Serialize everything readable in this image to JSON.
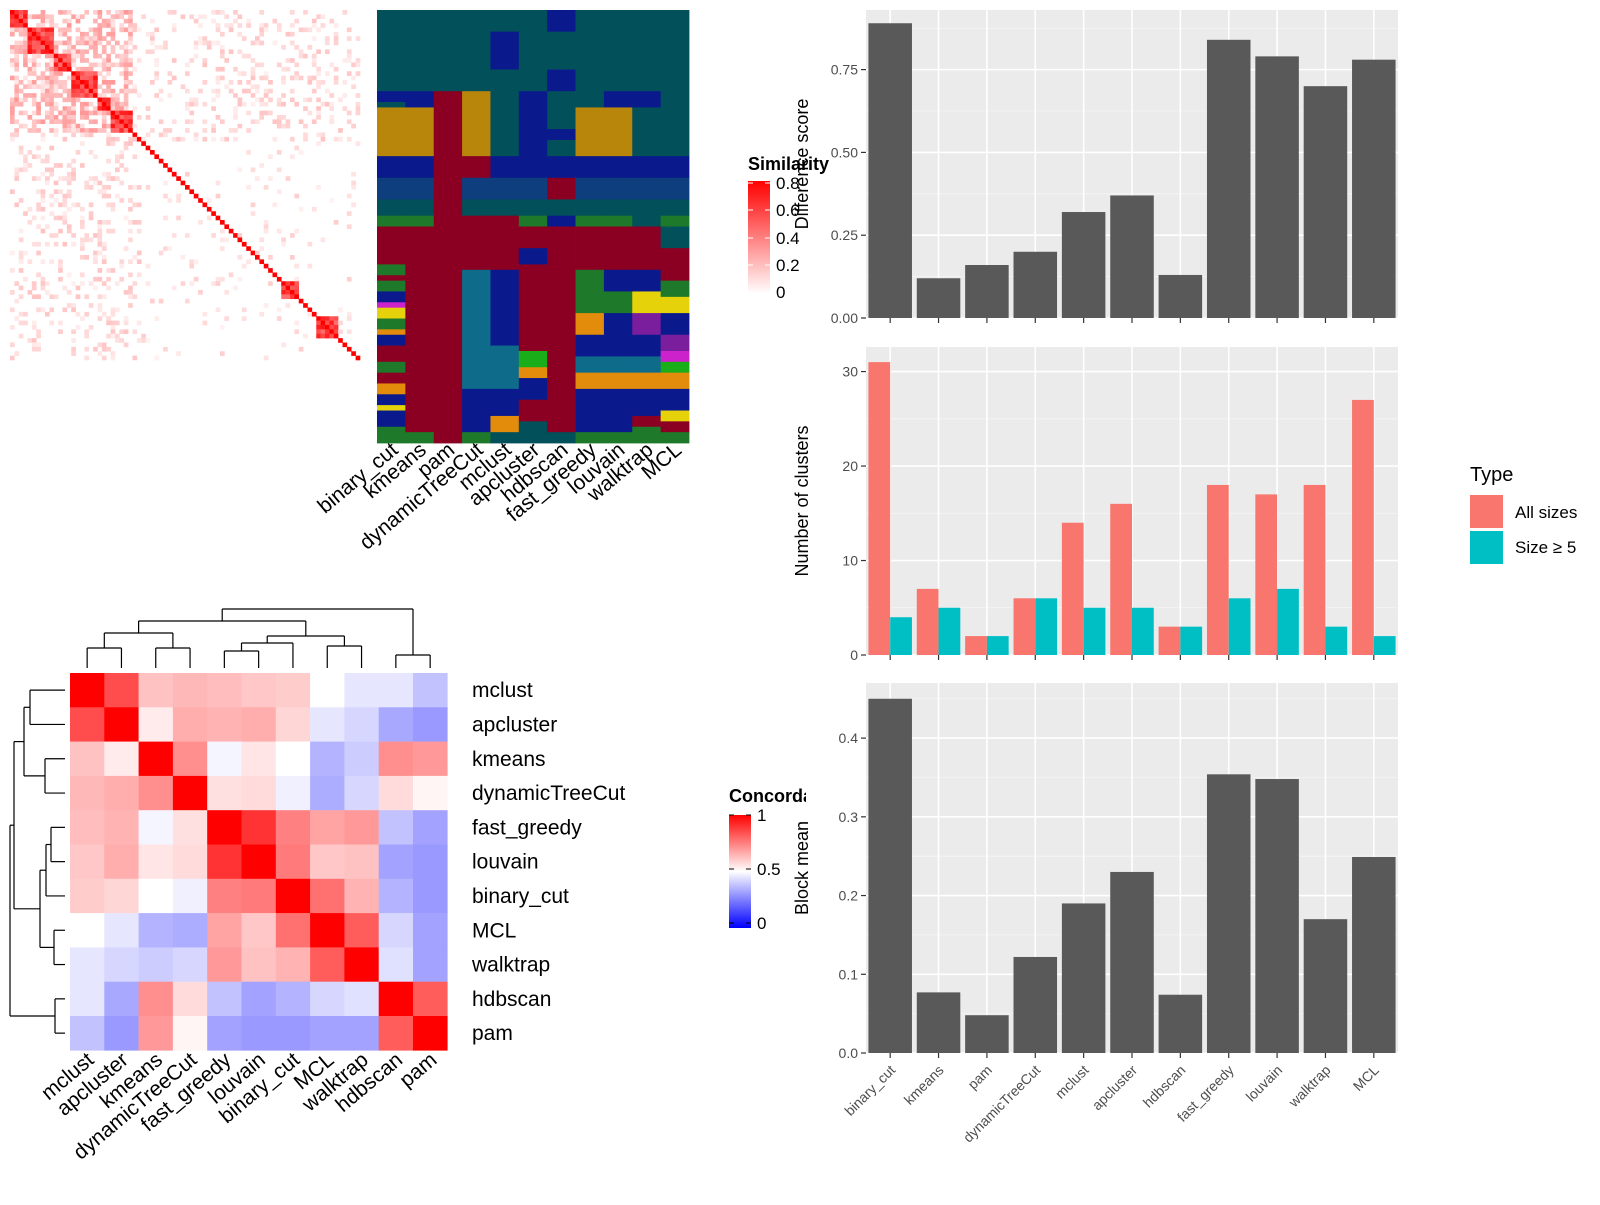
{
  "methods_order": [
    "binary_cut",
    "kmeans",
    "pam",
    "dynamicTreeCut",
    "mclust",
    "apcluster",
    "hdbscan",
    "fast_greedy",
    "louvain",
    "walktrap",
    "MCL"
  ],
  "similarity_legend": {
    "title": "Similarity",
    "ticks": [
      "0.8",
      "0.6",
      "0.4",
      "0.2",
      "0"
    ],
    "colors": [
      "#ffffff",
      "#ff0000"
    ]
  },
  "concordance_legend": {
    "title": "Concordance",
    "ticks": [
      "1",
      "0.5",
      "0"
    ],
    "colors": [
      "#0000ff",
      "#ffffff",
      "#ff0000"
    ]
  },
  "type_legend": {
    "title": "Type",
    "items": [
      {
        "label": "All sizes",
        "color": "#f8766d"
      },
      {
        "label": "Size ≥ 5",
        "color": "#00bfc4"
      }
    ]
  },
  "cluster_palette": [
    "#02505a",
    "#0a1a8c",
    "#b8860b",
    "#8b0022",
    "#0e3e7e",
    "#0f6b8a",
    "#1e7a2a",
    "#1aad1a",
    "#e38b0a",
    "#cc22cc",
    "#e6d20a",
    "#7a1e9e"
  ],
  "chart_data": [
    {
      "type": "heatmap",
      "name": "similarity-heatmap",
      "n_terms": 80,
      "scale": [
        0,
        0.8
      ]
    },
    {
      "type": "heatmap",
      "name": "cluster-assignment-heatmap",
      "columns": [
        "binary_cut",
        "kmeans",
        "pam",
        "dynamicTreeCut",
        "mclust",
        "apcluster",
        "hdbscan",
        "fast_greedy",
        "louvain",
        "walktrap",
        "MCL"
      ]
    },
    {
      "type": "heatmap",
      "name": "concordance-heatmap",
      "rows": [
        "mclust",
        "apcluster",
        "kmeans",
        "dynamicTreeCut",
        "fast_greedy",
        "louvain",
        "binary_cut",
        "MCL",
        "walktrap",
        "hdbscan",
        "pam"
      ],
      "columns": [
        "mclust",
        "apcluster",
        "kmeans",
        "dynamicTreeCut",
        "fast_greedy",
        "louvain",
        "binary_cut",
        "MCL",
        "walktrap",
        "hdbscan",
        "pam"
      ],
      "scale": [
        0,
        1
      ],
      "values": [
        [
          1.0,
          0.85,
          0.62,
          0.64,
          0.63,
          0.61,
          0.6,
          0.5,
          0.45,
          0.45,
          0.38
        ],
        [
          0.85,
          1.0,
          0.54,
          0.66,
          0.65,
          0.66,
          0.58,
          0.45,
          0.42,
          0.33,
          0.3
        ],
        [
          0.62,
          0.54,
          1.0,
          0.72,
          0.48,
          0.55,
          0.5,
          0.35,
          0.4,
          0.72,
          0.7
        ],
        [
          0.64,
          0.66,
          0.72,
          1.0,
          0.56,
          0.57,
          0.47,
          0.34,
          0.42,
          0.57,
          0.52
        ],
        [
          0.63,
          0.65,
          0.48,
          0.56,
          1.0,
          0.9,
          0.75,
          0.68,
          0.7,
          0.38,
          0.32
        ],
        [
          0.61,
          0.66,
          0.55,
          0.57,
          0.9,
          1.0,
          0.76,
          0.61,
          0.62,
          0.32,
          0.3
        ],
        [
          0.6,
          0.58,
          0.5,
          0.47,
          0.75,
          0.76,
          1.0,
          0.78,
          0.65,
          0.35,
          0.3
        ],
        [
          0.5,
          0.45,
          0.35,
          0.34,
          0.68,
          0.61,
          0.78,
          1.0,
          0.82,
          0.42,
          0.32
        ],
        [
          0.45,
          0.42,
          0.4,
          0.42,
          0.7,
          0.62,
          0.65,
          0.82,
          1.0,
          0.44,
          0.32
        ],
        [
          0.45,
          0.33,
          0.72,
          0.57,
          0.38,
          0.32,
          0.35,
          0.42,
          0.44,
          1.0,
          0.82
        ],
        [
          0.38,
          0.3,
          0.7,
          0.52,
          0.32,
          0.3,
          0.3,
          0.32,
          0.32,
          0.82,
          1.0
        ]
      ]
    },
    {
      "type": "bar",
      "name": "difference-score",
      "categories": [
        "binary_cut",
        "kmeans",
        "pam",
        "dynamicTreeCut",
        "mclust",
        "apcluster",
        "hdbscan",
        "fast_greedy",
        "louvain",
        "walktrap",
        "MCL"
      ],
      "values": [
        0.89,
        0.12,
        0.16,
        0.2,
        0.32,
        0.37,
        0.13,
        0.84,
        0.79,
        0.7,
        0.78
      ],
      "ylabel": "Difference score",
      "ylim": [
        0,
        0.93
      ],
      "yticks": [
        0,
        0.25,
        0.5,
        0.75
      ],
      "ytick_labels": [
        "0.00",
        "0.25",
        "0.50",
        "0.75"
      ],
      "bar_color": "#595959"
    },
    {
      "type": "bar",
      "name": "number-of-clusters",
      "categories": [
        "binary_cut",
        "kmeans",
        "pam",
        "dynamicTreeCut",
        "mclust",
        "apcluster",
        "hdbscan",
        "fast_greedy",
        "louvain",
        "walktrap",
        "MCL"
      ],
      "series": [
        {
          "name": "All sizes",
          "values": [
            31,
            7,
            2,
            6,
            14,
            16,
            3,
            18,
            17,
            18,
            27
          ]
        },
        {
          "name": "Size ≥ 5",
          "values": [
            4,
            5,
            2,
            6,
            5,
            5,
            3,
            6,
            7,
            3,
            2
          ]
        }
      ],
      "ylabel": "Number of clusters",
      "ylim": [
        0,
        32.6
      ],
      "yticks": [
        0,
        10,
        20,
        30
      ],
      "ytick_labels": [
        "0",
        "10",
        "20",
        "30"
      ],
      "legend": "right"
    },
    {
      "type": "bar",
      "name": "block-mean",
      "categories": [
        "binary_cut",
        "kmeans",
        "pam",
        "dynamicTreeCut",
        "mclust",
        "apcluster",
        "hdbscan",
        "fast_greedy",
        "louvain",
        "walktrap",
        "MCL"
      ],
      "values": [
        0.45,
        0.077,
        0.048,
        0.122,
        0.19,
        0.23,
        0.074,
        0.354,
        0.348,
        0.17,
        0.249
      ],
      "ylabel": "Block mean",
      "ylim": [
        0,
        0.47
      ],
      "yticks": [
        0,
        0.1,
        0.2,
        0.3,
        0.4
      ],
      "ytick_labels": [
        "0.0",
        "0.1",
        "0.2",
        "0.3",
        "0.4"
      ],
      "bar_color": "#595959"
    }
  ]
}
